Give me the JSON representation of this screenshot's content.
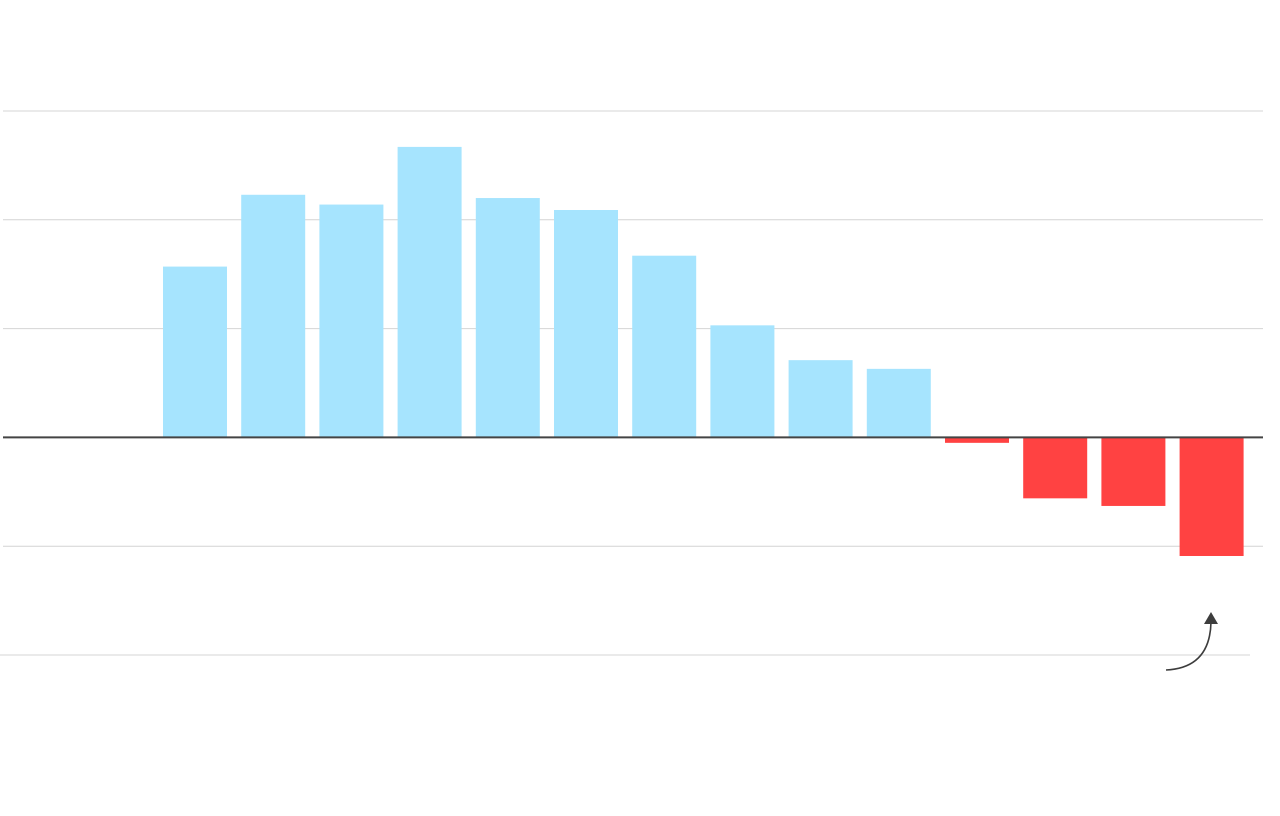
{
  "chart_data": {
    "type": "bar",
    "title": "",
    "xlabel": "",
    "ylabel": "",
    "ylim": [
      -2,
      3
    ],
    "grid": true,
    "legend": "none",
    "values": [
      null,
      null,
      1.57,
      2.23,
      2.14,
      2.67,
      2.2,
      2.09,
      1.67,
      1.03,
      0.71,
      0.63,
      -0.05,
      -0.56,
      -0.63,
      -1.09
    ],
    "colors": {
      "positive": "#a6e4fe",
      "negative": "#ff4242",
      "zero_line": "#444444",
      "grid": "#d4d4d4",
      "annotation": "#3d3d3d"
    },
    "annotation": {
      "icon": "curved-arrow-up",
      "points_to_bar": 15
    }
  }
}
